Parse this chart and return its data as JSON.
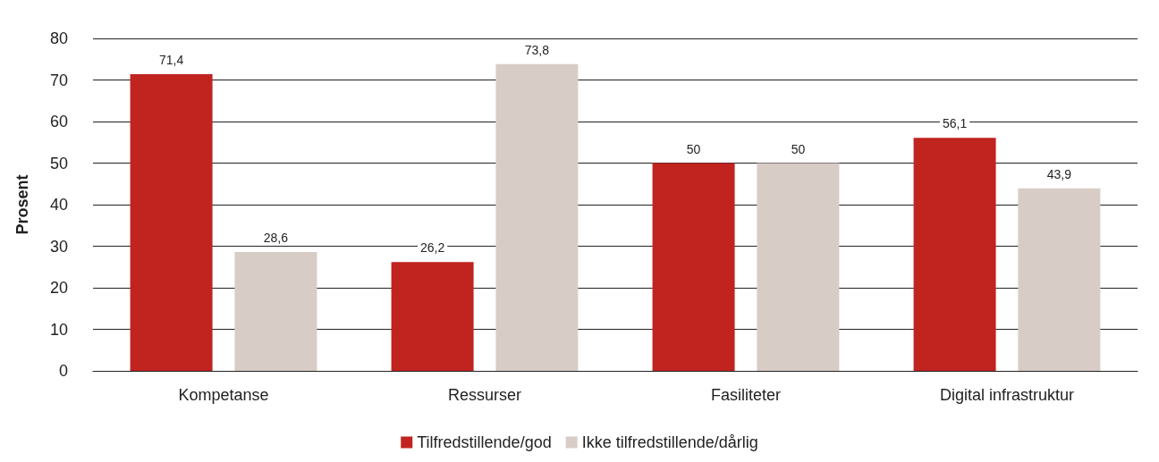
{
  "chart_data": {
    "type": "bar",
    "ylabel": "Prosent",
    "categories": [
      "Kompetanse",
      "Ressurser",
      "Fasiliteter",
      "Digital infrastruktur"
    ],
    "series": [
      {
        "name": "Tilfredstillende/god",
        "color": "#c1231f",
        "values": [
          71.4,
          26.2,
          50,
          56.1
        ],
        "value_labels": [
          "71,4",
          "26,2",
          "50",
          "56,1"
        ]
      },
      {
        "name": "Ikke tilfredstillende/dårlig",
        "color": "#d8ccc6",
        "values": [
          28.6,
          73.8,
          50,
          43.9
        ],
        "value_labels": [
          "28,6",
          "73,8",
          "50",
          "43,9"
        ]
      }
    ],
    "ylim": [
      0,
      80
    ],
    "yticks": [
      0,
      10,
      20,
      30,
      40,
      50,
      60,
      70,
      80
    ],
    "grid": "y",
    "legend": "bottom"
  }
}
